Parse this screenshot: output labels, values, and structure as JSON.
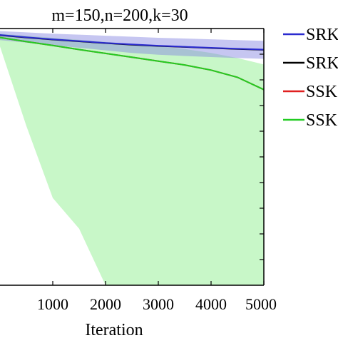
{
  "chart_data": {
    "type": "line",
    "title": "m=150,n=200,k=30",
    "xlabel": "Iteration",
    "ylabel": "",
    "xlim": [
      0,
      5000
    ],
    "ylim": [
      0,
      1
    ],
    "xticks": [
      1000,
      2000,
      3000,
      4000,
      5000
    ],
    "xtick_labels": [
      "1000",
      "2000",
      "3000",
      "4000",
      "5000"
    ],
    "grid": false,
    "legend_position": "right",
    "series": [
      {
        "name": "SRK",
        "color": "#2b2bcf",
        "band_color": "#8080e0",
        "x": [
          0,
          500,
          1000,
          1500,
          2000,
          2500,
          3000,
          3500,
          4000,
          4500,
          5000
        ],
        "y": [
          0.975,
          0.966,
          0.958,
          0.951,
          0.944,
          0.938,
          0.933,
          0.929,
          0.925,
          0.921,
          0.918
        ],
        "upper": [
          0.99,
          0.985,
          0.98,
          0.976,
          0.972,
          0.968,
          0.964,
          0.961,
          0.958,
          0.955,
          0.952
        ],
        "lower": [
          0.955,
          0.945,
          0.935,
          0.925,
          0.915,
          0.905,
          0.898,
          0.893,
          0.889,
          0.885,
          0.882
        ]
      },
      {
        "name": "SRK",
        "color": "#000000",
        "x": [
          0,
          500,
          1000,
          1500,
          2000,
          2500,
          3000,
          3500,
          4000,
          4500,
          5000
        ],
        "y": [
          0.974,
          0.965,
          0.957,
          0.95,
          0.943,
          0.937,
          0.932,
          0.928,
          0.924,
          0.92,
          0.917
        ]
      },
      {
        "name": "SSK",
        "color": "#e02020",
        "x": [
          0,
          500,
          1000,
          1500,
          2000,
          2500,
          3000,
          3500,
          4000,
          4500,
          5000
        ],
        "y": [
          0.965,
          0.949,
          0.934,
          0.918,
          0.903,
          0.888,
          0.873,
          0.858,
          0.838,
          0.81,
          0.762
        ]
      },
      {
        "name": "SSK",
        "color": "#22cc22",
        "band_color": "#9af09a",
        "x": [
          0,
          500,
          1000,
          1500,
          2000,
          2500,
          3000,
          3500,
          4000,
          4500,
          5000
        ],
        "y": [
          0.965,
          0.949,
          0.934,
          0.918,
          0.903,
          0.888,
          0.873,
          0.858,
          0.838,
          0.81,
          0.762
        ],
        "upper": [
          0.98,
          0.972,
          0.964,
          0.956,
          0.948,
          0.94,
          0.931,
          0.92,
          0.905,
          0.885,
          0.86
        ],
        "lower": [
          0.93,
          0.62,
          0.34,
          0.22,
          0.0,
          0.0,
          0.0,
          0.0,
          0.0,
          0.0,
          0.0
        ]
      }
    ]
  }
}
